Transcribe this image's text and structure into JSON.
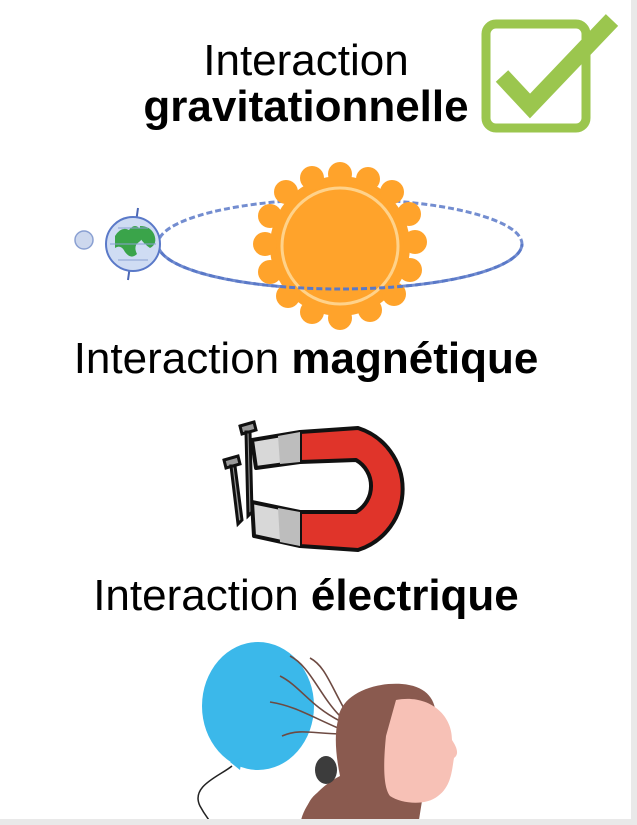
{
  "sections": [
    {
      "prefix": "Interaction",
      "keyword": "gravitationnelle",
      "checked": true
    },
    {
      "prefix": "Interaction",
      "keyword": "magnétique"
    },
    {
      "prefix": "Interaction",
      "keyword": "électrique"
    }
  ],
  "icons": {
    "check": "checkbox-checked-icon",
    "gravity": "earth-orbiting-sun-illustration",
    "magnet": "horseshoe-magnet-with-nails-illustration",
    "electric": "balloon-attracting-hair-illustration"
  },
  "colors": {
    "check_green": "#9bc64e",
    "sun_orange": "#ffa32b",
    "orbit_blue": "#5a79c8",
    "magnet_red": "#e0342a",
    "balloon_blue": "#3bb8ea",
    "hair_brown": "#8a5a4f",
    "skin_pink": "#f7c1b6"
  }
}
